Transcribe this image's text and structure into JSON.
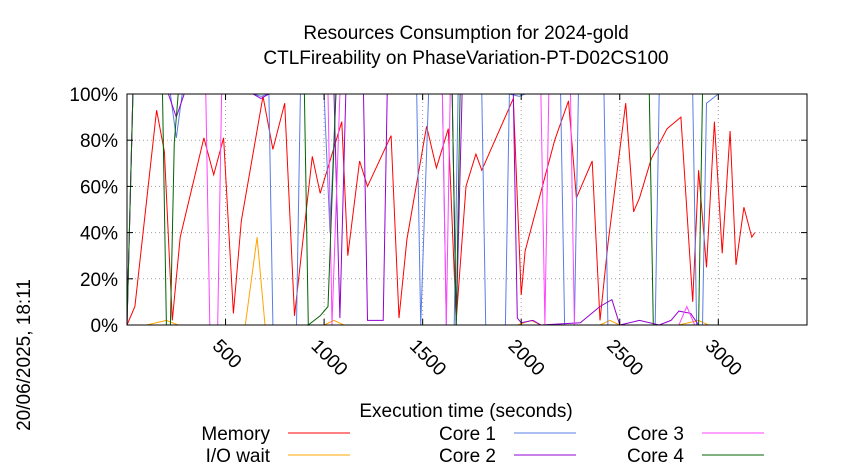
{
  "chart_data": {
    "type": "line",
    "title": "Resources Consumption for 2024-gold",
    "subtitle": "CTLFireability on PhaseVariation-PT-D02CS100",
    "xlabel": "Execution time (seconds)",
    "ylabel": "",
    "timestamp": "20/06/2025, 18:11",
    "xlim": [
      0,
      3450
    ],
    "ylim": [
      0,
      100
    ],
    "x_ticks": [
      500,
      1000,
      1500,
      2000,
      2500,
      3000
    ],
    "x_tick_labels": [
      "500",
      "1000",
      "1500",
      "2000",
      "2500",
      "3000"
    ],
    "y_ticks": [
      0,
      20,
      40,
      60,
      80,
      100
    ],
    "y_tick_labels": [
      "0%",
      "20%",
      "40%",
      "60%",
      "80%",
      "100%"
    ],
    "grid": true,
    "legend_position": "bottom",
    "series": [
      {
        "name": "Memory",
        "color": "#ff0000",
        "points": [
          [
            0,
            0
          ],
          [
            40,
            8
          ],
          [
            150,
            93
          ],
          [
            190,
            75
          ],
          [
            230,
            2
          ],
          [
            270,
            38
          ],
          [
            390,
            81
          ],
          [
            440,
            65
          ],
          [
            490,
            81
          ],
          [
            540,
            5
          ],
          [
            580,
            45
          ],
          [
            690,
            99
          ],
          [
            740,
            76
          ],
          [
            800,
            96
          ],
          [
            850,
            4
          ],
          [
            940,
            73
          ],
          [
            980,
            57
          ],
          [
            1090,
            88
          ],
          [
            1120,
            30
          ],
          [
            1180,
            71
          ],
          [
            1220,
            60
          ],
          [
            1340,
            82
          ],
          [
            1380,
            3
          ],
          [
            1420,
            37
          ],
          [
            1520,
            86
          ],
          [
            1570,
            68
          ],
          [
            1630,
            85
          ],
          [
            1670,
            2
          ],
          [
            1720,
            60
          ],
          [
            1770,
            74
          ],
          [
            1800,
            67
          ],
          [
            1960,
            98
          ],
          [
            2000,
            13
          ],
          [
            2020,
            32
          ],
          [
            2170,
            80
          ],
          [
            2240,
            97
          ],
          [
            2280,
            55
          ],
          [
            2360,
            71
          ],
          [
            2400,
            2
          ],
          [
            2440,
            35
          ],
          [
            2530,
            96
          ],
          [
            2570,
            49
          ],
          [
            2600,
            55
          ],
          [
            2660,
            72
          ],
          [
            2740,
            85
          ],
          [
            2810,
            90
          ],
          [
            2870,
            10
          ],
          [
            2900,
            67
          ],
          [
            2940,
            25
          ],
          [
            2980,
            88
          ],
          [
            3020,
            31
          ],
          [
            3060,
            84
          ],
          [
            3090,
            26
          ],
          [
            3130,
            51
          ],
          [
            3170,
            38
          ],
          [
            3185,
            40
          ]
        ]
      },
      {
        "name": "I/O wait",
        "color": "#ffa500",
        "points": [
          [
            0,
            0
          ],
          [
            100,
            0
          ],
          [
            200,
            2
          ],
          [
            260,
            0
          ],
          [
            600,
            0
          ],
          [
            660,
            38
          ],
          [
            700,
            0
          ],
          [
            1000,
            0
          ],
          [
            1050,
            2
          ],
          [
            1100,
            0
          ],
          [
            1980,
            0
          ],
          [
            2050,
            2
          ],
          [
            2100,
            0
          ],
          [
            2400,
            0
          ],
          [
            2450,
            2
          ],
          [
            2500,
            0
          ],
          [
            2800,
            0
          ],
          [
            2900,
            2
          ],
          [
            2950,
            0
          ]
        ]
      },
      {
        "name": "Core 1",
        "color": "#5a7de6",
        "points": [
          [
            0,
            0
          ],
          [
            30,
            100
          ],
          [
            220,
            100
          ],
          [
            250,
            81
          ],
          [
            280,
            100
          ],
          [
            640,
            100
          ],
          [
            680,
            99
          ],
          [
            720,
            100
          ],
          [
            740,
            0
          ],
          [
            860,
            0
          ],
          [
            880,
            100
          ],
          [
            1000,
            100
          ],
          [
            1030,
            40
          ],
          [
            1060,
            100
          ],
          [
            1470,
            100
          ],
          [
            1490,
            0
          ],
          [
            1530,
            100
          ],
          [
            1600,
            100
          ],
          [
            1620,
            0
          ],
          [
            1660,
            0
          ],
          [
            1680,
            100
          ],
          [
            1800,
            100
          ],
          [
            1820,
            0
          ],
          [
            1920,
            0
          ],
          [
            1940,
            100
          ],
          [
            1990,
            99
          ],
          [
            2020,
            100
          ],
          [
            2200,
            100
          ],
          [
            2220,
            0
          ],
          [
            2270,
            0
          ],
          [
            2290,
            100
          ],
          [
            2420,
            100
          ],
          [
            2440,
            0
          ],
          [
            2680,
            0
          ],
          [
            2700,
            100
          ],
          [
            2870,
            100
          ],
          [
            2890,
            0
          ],
          [
            2920,
            0
          ],
          [
            2940,
            96
          ],
          [
            3000,
            100
          ],
          [
            3185,
            100
          ]
        ]
      },
      {
        "name": "Core 2",
        "color": "#9400d3",
        "points": [
          [
            0,
            0
          ],
          [
            30,
            100
          ],
          [
            210,
            100
          ],
          [
            250,
            90
          ],
          [
            290,
            100
          ],
          [
            640,
            100
          ],
          [
            680,
            98
          ],
          [
            720,
            100
          ],
          [
            1050,
            100
          ],
          [
            1080,
            3
          ],
          [
            1110,
            100
          ],
          [
            1200,
            100
          ],
          [
            1220,
            2
          ],
          [
            1300,
            2
          ],
          [
            1320,
            100
          ],
          [
            1650,
            100
          ],
          [
            1670,
            0
          ],
          [
            1700,
            100
          ],
          [
            1960,
            100
          ],
          [
            1980,
            3
          ],
          [
            2000,
            1
          ],
          [
            2060,
            2
          ],
          [
            2100,
            0
          ],
          [
            2300,
            1
          ],
          [
            2400,
            8
          ],
          [
            2460,
            11
          ],
          [
            2500,
            0
          ],
          [
            2600,
            2
          ],
          [
            2700,
            0
          ],
          [
            2760,
            2
          ],
          [
            2800,
            6
          ],
          [
            2860,
            5
          ],
          [
            2900,
            0
          ],
          [
            3185,
            0
          ]
        ]
      },
      {
        "name": "Core 3",
        "color": "#ff44ff",
        "points": [
          [
            0,
            0
          ],
          [
            30,
            100
          ],
          [
            400,
            100
          ],
          [
            420,
            0
          ],
          [
            460,
            0
          ],
          [
            480,
            100
          ],
          [
            1020,
            100
          ],
          [
            1040,
            0
          ],
          [
            1080,
            100
          ],
          [
            1600,
            100
          ],
          [
            1620,
            0
          ],
          [
            1640,
            100
          ],
          [
            2100,
            100
          ],
          [
            2120,
            0
          ],
          [
            2140,
            100
          ],
          [
            2250,
            100
          ],
          [
            2270,
            0
          ],
          [
            2800,
            0
          ],
          [
            2840,
            8
          ],
          [
            2880,
            0
          ],
          [
            3185,
            0
          ]
        ]
      },
      {
        "name": "Core 4",
        "color": "#006400",
        "points": [
          [
            0,
            0
          ],
          [
            30,
            100
          ],
          [
            180,
            100
          ],
          [
            200,
            0
          ],
          [
            220,
            0
          ],
          [
            240,
            79
          ],
          [
            260,
            100
          ],
          [
            900,
            100
          ],
          [
            920,
            0
          ],
          [
            980,
            4
          ],
          [
            1020,
            8
          ],
          [
            1060,
            100
          ],
          [
            1650,
            100
          ],
          [
            1670,
            0
          ],
          [
            1690,
            100
          ],
          [
            2650,
            100
          ],
          [
            2670,
            0
          ],
          [
            2900,
            0
          ],
          [
            2920,
            100
          ],
          [
            3185,
            100
          ]
        ]
      }
    ]
  }
}
